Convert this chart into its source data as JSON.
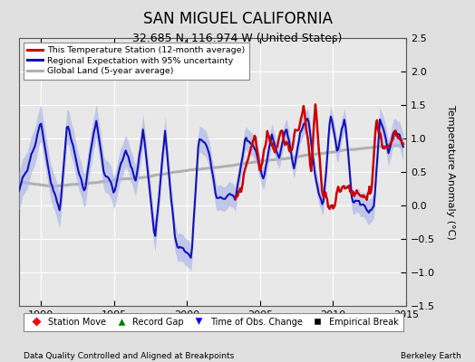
{
  "title": "SAN MIGUEL CALIFORNIA",
  "subtitle": "32.685 N, 116.974 W (United States)",
  "ylabel": "Temperature Anomaly (°C)",
  "xlabel_left": "Data Quality Controlled and Aligned at Breakpoints",
  "xlabel_right": "Berkeley Earth",
  "ylim": [
    -1.5,
    2.5
  ],
  "xlim": [
    1988.5,
    2015.0
  ],
  "xticks": [
    1990,
    1995,
    2000,
    2005,
    2010,
    2015
  ],
  "yticks": [
    -1.5,
    -1.0,
    -0.5,
    0.0,
    0.5,
    1.0,
    1.5,
    2.0,
    2.5
  ],
  "red_color": "#cc0000",
  "blue_color": "#1111bb",
  "blue_fill_color": "#b0b8e8",
  "gray_color": "#b0b0b0",
  "background_color": "#e0e0e0",
  "plot_bg_color": "#e8e8e8",
  "legend_items": [
    {
      "label": "This Temperature Station (12-month average)",
      "color": "#cc0000"
    },
    {
      "label": "Regional Expectation with 95% uncertainty",
      "color": "#1111bb"
    },
    {
      "label": "Global Land (5-year average)",
      "color": "#b0b0b0"
    }
  ],
  "bottom_legend": [
    {
      "label": "Station Move",
      "color": "red",
      "marker": "D"
    },
    {
      "label": "Record Gap",
      "color": "green",
      "marker": "^"
    },
    {
      "label": "Time of Obs. Change",
      "color": "blue",
      "marker": "v"
    },
    {
      "label": "Empirical Break",
      "color": "black",
      "marker": "s"
    }
  ]
}
